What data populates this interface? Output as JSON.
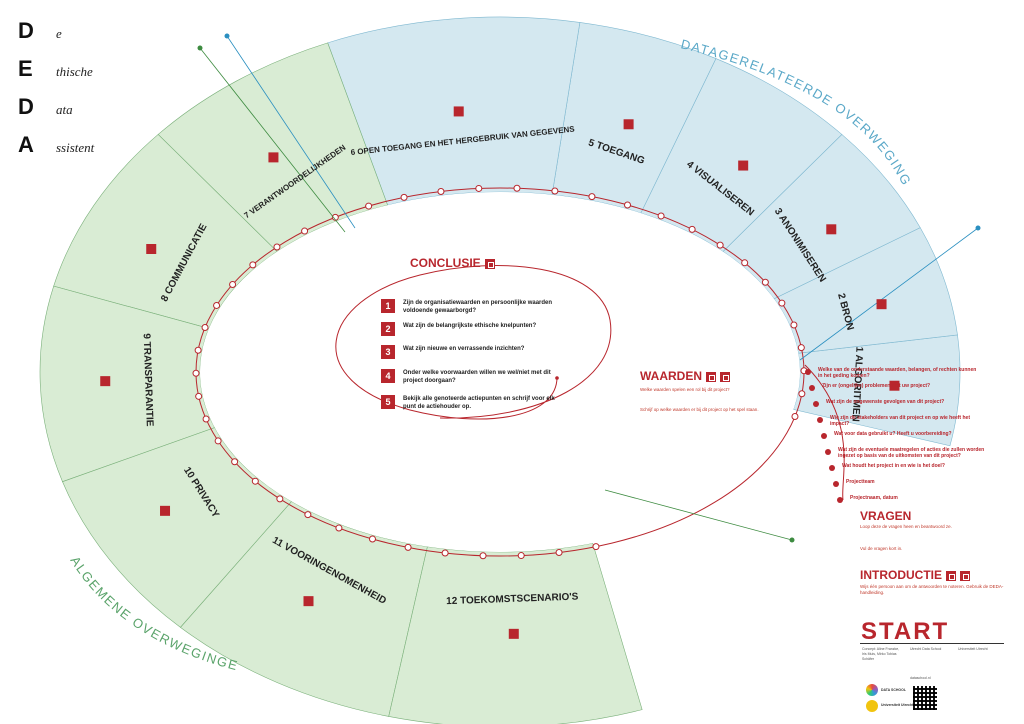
{
  "brand": {
    "letters": [
      "D",
      "E",
      "D",
      "A"
    ],
    "words": [
      "e",
      "thische",
      "ata",
      "ssistent"
    ]
  },
  "curved_titles": {
    "data": "DATAGERELATEERDE OVERWEGINGEN",
    "algemene": "ALGEMENE OVERWEGINGEN"
  },
  "sectors": [
    {
      "num": "1",
      "title": "ALGORITMEN"
    },
    {
      "num": "2",
      "title": "BRON"
    },
    {
      "num": "3",
      "title": "ANONIMISEREN"
    },
    {
      "num": "4",
      "title": "VISUALISEREN"
    },
    {
      "num": "5",
      "title": "TOEGANG"
    },
    {
      "num": "6",
      "title": "OPEN TOEGANG EN HET HERGEBRUIK VAN GEGEVENS"
    },
    {
      "num": "7",
      "title": "VERANTWOORDELIJKHEDEN"
    },
    {
      "num": "8",
      "title": "COMMUNICATIE"
    },
    {
      "num": "9",
      "title": "TRANSPARANTIE"
    },
    {
      "num": "10",
      "title": "PRIVACY"
    },
    {
      "num": "11",
      "title": "VOORINGENOMENHEID"
    },
    {
      "num": "12",
      "title": "TOEKOMSTSCENARIO'S"
    }
  ],
  "conclusie": {
    "title": "CONCLUSIE",
    "items": [
      {
        "num": "1",
        "text": "Zijn de organisatiewaarden en persoonlijke waarden voldoende gewaarborgd?"
      },
      {
        "num": "2",
        "text": "Wat zijn de belangrijkste ethische knelpunten?"
      },
      {
        "num": "3",
        "text": "Wat zijn nieuwe en verrassende inzichten?"
      },
      {
        "num": "4",
        "text": "Onder welke voorwaarden willen we wel/niet met dit project doorgaan?"
      },
      {
        "num": "5",
        "text": "Bekijk alle genoteerde actiepunten en schrijf voor elk punt de actiehouder op."
      }
    ]
  },
  "waarden": {
    "title": "WAARDEN",
    "text1": "Welke waarden spelen een rol bij dit project?",
    "text2": "Schrijf op welke waarden er bij dit project op het spel staan."
  },
  "questions_right": [
    "Welke van de onderstaande waarden, belangen, of rechten kunnen in het geding komen?",
    "Zijn er (ongelijke) problemen met uw project?",
    "Wat zijn de ongewenste gevolgen van dit project?",
    "Wie zijn de stakeholders van dit project en op wie heeft het impact?",
    "Wat voor data gebruikt u? Heeft u voorbereiding?",
    "Wat zijn de eventuele maatregelen of acties die zullen worden ingezet op basis van de uitkomsten van dit project?",
    "Wat houdt het project in en wie is het doel?",
    "Projectteam",
    "Projectnaam, datum"
  ],
  "vragen": {
    "title": "VRAGEN",
    "text1": "Loop deze de vragen heen en beantwoord ze.",
    "text2": "Vul de vragen kort in."
  },
  "introductie": {
    "title": "INTRODUCTIE",
    "text": "Wijs één persoon aan om de antwoorden te noteren. Gebruik de DEDA-handleiding."
  },
  "start": "START",
  "footer": {
    "col1": "Concept: Aline Franzke, Iris Muis, Mirko Tobias Schäfer",
    "col2": "Utrecht Data School",
    "col3": "Universiteit Utrecht",
    "col4": "dataschool.nl",
    "logo1": "DATA SCHOOL",
    "logo2": "Universiteit Utrecht"
  },
  "colors": {
    "blue": "#d4e8f0",
    "green": "#d9ecd4",
    "red": "#b8262d"
  }
}
